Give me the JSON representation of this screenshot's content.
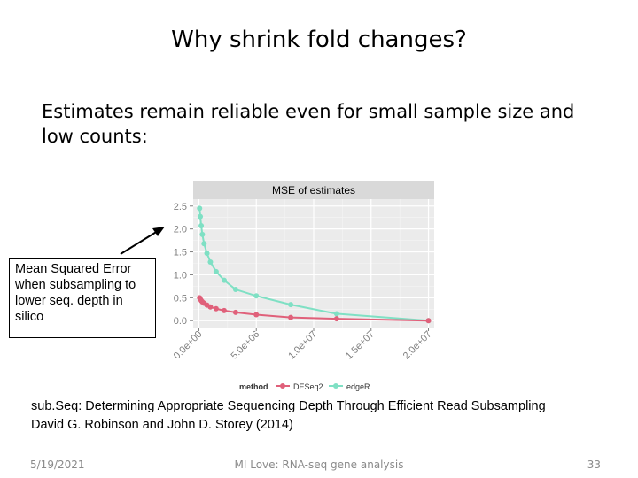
{
  "slide": {
    "title": "Why shrink fold changes?",
    "body": "Estimates remain reliable even for small sample size and low counts:"
  },
  "callout": {
    "text": "Mean Squared Error when subsampling to lower seq. depth in silico"
  },
  "citation": {
    "line1": "sub.Seq: Determining Appropriate Sequencing Depth Through Efficient Read Subsampling",
    "line2": "David G. Robinson and John D. Storey (2014)"
  },
  "footer": {
    "date": "5/19/2021",
    "center": "MI Love: RNA-seq gene analysis",
    "page": "33"
  },
  "colors": {
    "deseq2": "#e0607a",
    "edger": "#7fe0c4",
    "panel": "#ebebeb",
    "strip": "#d9d9d9"
  },
  "chart_data": {
    "type": "line",
    "title": "MSE of estimates",
    "xlabel": "",
    "ylabel": "",
    "xlim": [
      -500000,
      20500000
    ],
    "ylim": [
      -0.15,
      2.65
    ],
    "x_ticks": [
      0,
      5000000,
      10000000,
      15000000,
      20000000
    ],
    "x_tick_labels": [
      "0.0e+00",
      "5.0e+06",
      "1.0e+07",
      "1.5e+07",
      "2.0e+07"
    ],
    "y_ticks": [
      0.0,
      0.5,
      1.0,
      1.5,
      2.0,
      2.5
    ],
    "y_tick_labels": [
      "0.0",
      "0.5",
      "1.0",
      "1.5",
      "2.0",
      "2.5"
    ],
    "grid": true,
    "legend": {
      "position": "bottom",
      "title": "method"
    },
    "series": [
      {
        "name": "DESeq2",
        "x": [
          60000,
          120000,
          200000,
          300000,
          450000,
          700000,
          1000000,
          1500000,
          2200000,
          3200000,
          5000000,
          8000000,
          12000000,
          20000000
        ],
        "y": [
          0.5,
          0.47,
          0.44,
          0.41,
          0.38,
          0.34,
          0.3,
          0.26,
          0.22,
          0.18,
          0.13,
          0.07,
          0.04,
          0.0
        ]
      },
      {
        "name": "edgeR",
        "x": [
          60000,
          120000,
          200000,
          300000,
          450000,
          700000,
          1000000,
          1500000,
          2200000,
          3200000,
          5000000,
          8000000,
          12000000,
          20000000
        ],
        "y": [
          2.45,
          2.27,
          2.07,
          1.88,
          1.68,
          1.47,
          1.28,
          1.07,
          0.88,
          0.68,
          0.54,
          0.35,
          0.15,
          0.0
        ]
      }
    ]
  }
}
